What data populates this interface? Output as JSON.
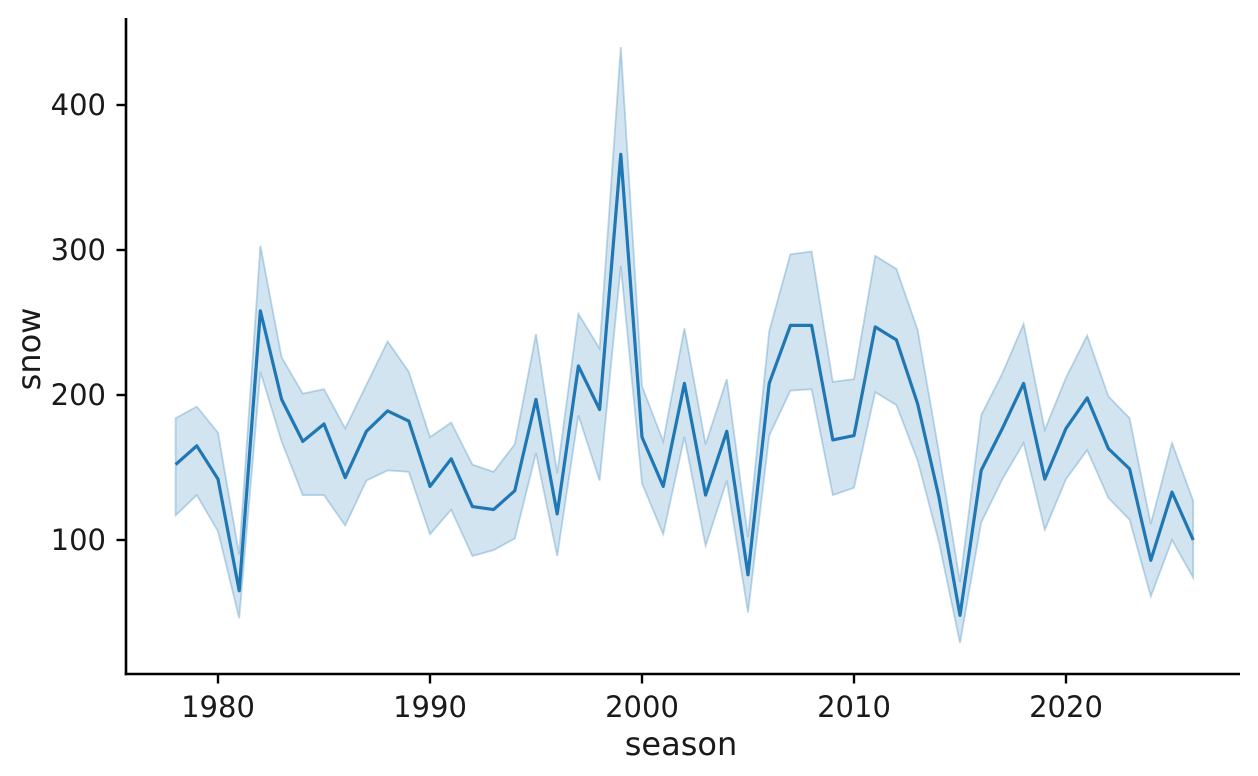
{
  "figure": {
    "background": "#ffffff"
  },
  "chart_data": {
    "type": "line",
    "title": "",
    "xlabel": "season",
    "ylabel": "snow",
    "legend": "none",
    "grid": false,
    "x": [
      1978,
      1979,
      1980,
      1981,
      1982,
      1983,
      1984,
      1985,
      1986,
      1987,
      1988,
      1989,
      1990,
      1991,
      1992,
      1993,
      1994,
      1995,
      1996,
      1997,
      1998,
      1999,
      2000,
      2001,
      2002,
      2003,
      2004,
      2005,
      2006,
      2007,
      2008,
      2009,
      2010,
      2011,
      2012,
      2013,
      2014,
      2015,
      2016,
      2017,
      2018,
      2019,
      2020,
      2021,
      2022,
      2023,
      2024,
      2025,
      2026
    ],
    "series": [
      {
        "name": "snow",
        "values": [
          152,
          165,
          142,
          65,
          258,
          197,
          168,
          180,
          143,
          175,
          189,
          182,
          137,
          156,
          123,
          121,
          134,
          197,
          118,
          220,
          190,
          366,
          171,
          137,
          208,
          131,
          175,
          76,
          208,
          248,
          248,
          169,
          172,
          247,
          238,
          194,
          130,
          48,
          148,
          177,
          208,
          142,
          177,
          198,
          163,
          149,
          86,
          133,
          100
        ]
      }
    ],
    "band": {
      "name": "confidence-interval",
      "lower": [
        117,
        131,
        106,
        46,
        216,
        168,
        131,
        131,
        110,
        141,
        148,
        147,
        104,
        121,
        89,
        93,
        101,
        160,
        89,
        186,
        141,
        289,
        139,
        104,
        171,
        96,
        141,
        50,
        172,
        203,
        204,
        131,
        136,
        202,
        193,
        155,
        99,
        29,
        112,
        142,
        167,
        107,
        142,
        162,
        129,
        114,
        61,
        100,
        74
      ],
      "upper": [
        184,
        192,
        174,
        90,
        303,
        226,
        201,
        204,
        177,
        207,
        237,
        216,
        171,
        181,
        152,
        147,
        166,
        242,
        146,
        256,
        232,
        440,
        206,
        168,
        246,
        166,
        211,
        102,
        244,
        297,
        299,
        209,
        211,
        296,
        287,
        245,
        161,
        71,
        186,
        215,
        249,
        176,
        212,
        241,
        199,
        184,
        111,
        167,
        127
      ]
    },
    "xticks": [
      1980,
      1990,
      2000,
      2010,
      2020
    ],
    "yticks": [
      100,
      200,
      300,
      400
    ],
    "xlim": [
      1975.7,
      2028.2
    ],
    "ylim": [
      8,
      460
    ],
    "line_color": "#1f77b4",
    "line_width": 3.2,
    "band_fill": "#d2e4f0",
    "band_edge": "rgba(31,119,180,0.28)",
    "axis_color": "#000000",
    "tick_label_color": "#1a1a1a"
  }
}
